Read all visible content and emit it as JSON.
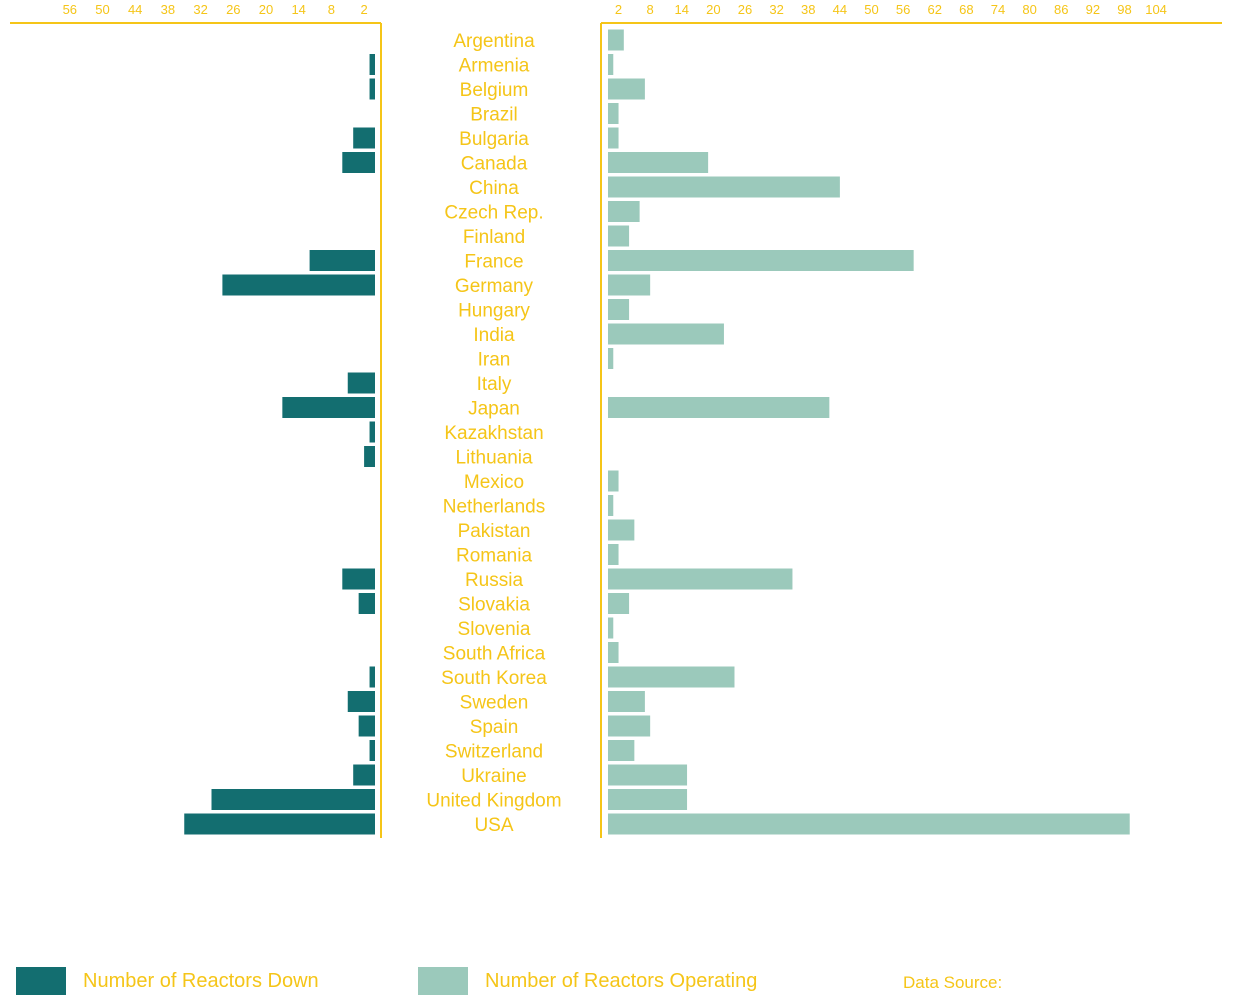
{
  "chart_data": {
    "type": "bar",
    "orientation": "horizontal-butterfly",
    "colors": {
      "accent": "#f5c518",
      "reactors_down": "#136e70",
      "reactors_operating": "#9bc9bb"
    },
    "categories": [
      "Argentina",
      "Armenia",
      "Belgium",
      "Brazil",
      "Bulgaria",
      "Canada",
      "China",
      "Czech Rep.",
      "Finland",
      "France",
      "Germany",
      "Hungary",
      "India",
      "Iran",
      "Italy",
      "Japan",
      "Kazakhstan",
      "Lithuania",
      "Mexico",
      "Netherlands",
      "Pakistan",
      "Romania",
      "Russia",
      "Slovakia",
      "Slovenia",
      "South Africa",
      "South Korea",
      "Sweden",
      "Spain",
      "Switzerland",
      "Ukraine",
      "United Kingdom",
      "USA"
    ],
    "series": [
      {
        "name": "Number of Reactors Down",
        "side": "left",
        "values": [
          0,
          1,
          1,
          0,
          4,
          6,
          0,
          0,
          0,
          12,
          28,
          0,
          0,
          0,
          5,
          17,
          1,
          2,
          0,
          0,
          0,
          0,
          6,
          3,
          0,
          0,
          1,
          5,
          3,
          1,
          4,
          30,
          35
        ]
      },
      {
        "name": "Number of Reactors Operating",
        "side": "right",
        "values": [
          3,
          1,
          7,
          2,
          2,
          19,
          44,
          6,
          4,
          58,
          8,
          4,
          22,
          1,
          0,
          42,
          0,
          0,
          2,
          1,
          5,
          2,
          35,
          4,
          1,
          2,
          24,
          7,
          8,
          5,
          15,
          15,
          99
        ]
      }
    ],
    "left_axis": {
      "ticks": [
        "56",
        "50",
        "44",
        "38",
        "32",
        "26",
        "20",
        "14",
        "8",
        "2"
      ],
      "tick_values": [
        56,
        50,
        44,
        38,
        32,
        26,
        20,
        14,
        8,
        2
      ],
      "range": [
        0,
        68
      ]
    },
    "right_axis": {
      "ticks": [
        "2",
        "8",
        "14",
        "20",
        "26",
        "32",
        "38",
        "44",
        "50",
        "56",
        "62",
        "68",
        "74",
        "80",
        "86",
        "92",
        "98",
        "104"
      ],
      "tick_values": [
        2,
        8,
        14,
        20,
        26,
        32,
        38,
        44,
        50,
        56,
        62,
        68,
        74,
        80,
        86,
        92,
        98,
        104
      ],
      "range": [
        0,
        115
      ]
    },
    "legend": {
      "placement": "bottom-left"
    },
    "grid": false
  },
  "footer": {
    "source_label": "Data Source:"
  }
}
